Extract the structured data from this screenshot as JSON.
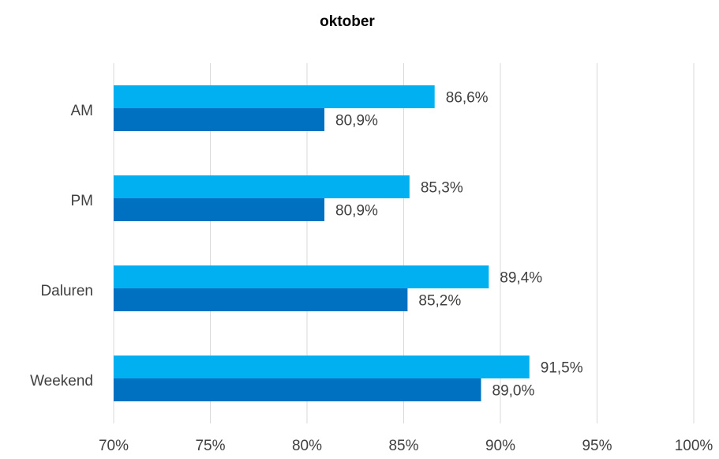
{
  "chart_data": {
    "type": "bar",
    "orientation": "horizontal",
    "title": "oktober",
    "categories": [
      "AM",
      "PM",
      "Daluren",
      "Weekend"
    ],
    "series": [
      {
        "color": "#00b0f0",
        "values": [
          86.6,
          85.3,
          89.4,
          91.5
        ],
        "value_labels": [
          "86,6%",
          "85,3%",
          "89,4%",
          "91,5%"
        ]
      },
      {
        "color": "#0070c0",
        "values": [
          80.9,
          80.9,
          85.2,
          89.0
        ],
        "value_labels": [
          "80,9%",
          "80,9%",
          "85,2%",
          "89,0%"
        ]
      }
    ],
    "xlim": [
      70,
      100
    ],
    "xticks": [
      {
        "value": 70,
        "label": "70%"
      },
      {
        "value": 75,
        "label": "75%"
      },
      {
        "value": 80,
        "label": "80%"
      },
      {
        "value": 85,
        "label": "85%"
      },
      {
        "value": 90,
        "label": "90%"
      },
      {
        "value": 95,
        "label": "95%"
      },
      {
        "value": 100,
        "label": "100%"
      }
    ],
    "grid": true
  }
}
